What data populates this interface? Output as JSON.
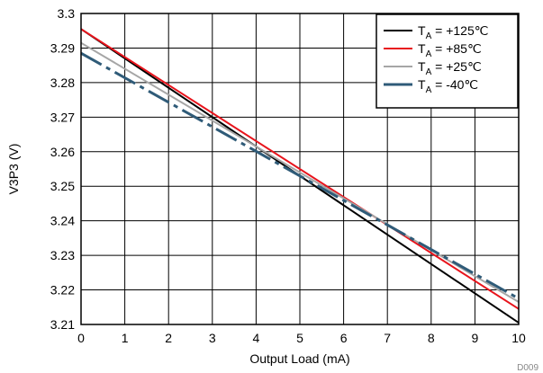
{
  "chart_data": {
    "type": "line",
    "xlabel": "Output Load (mA)",
    "ylabel": "V3P3 (V)",
    "xlim": [
      0,
      10
    ],
    "ylim": [
      3.21,
      3.3
    ],
    "xticks": [
      "0",
      "1",
      "2",
      "3",
      "4",
      "5",
      "6",
      "7",
      "8",
      "9",
      "10"
    ],
    "yticks": [
      "3.21",
      "3.22",
      "3.23",
      "3.24",
      "3.25",
      "3.26",
      "3.27",
      "3.28",
      "3.29",
      "3.3"
    ],
    "grid": true,
    "legend_position": "top-right",
    "figure_id": "D009",
    "series": [
      {
        "name": "+125℃",
        "label_prefix": "T",
        "label_sub": "A",
        "label_suffix": " = +125℃",
        "color": "#000000",
        "style": "solid",
        "x": [
          0,
          10
        ],
        "y": [
          3.2955,
          3.2105
        ]
      },
      {
        "name": "+85℃",
        "label_prefix": "T",
        "label_sub": "A",
        "label_suffix": " = +85℃",
        "color": "#e8141c",
        "style": "solid",
        "x": [
          0,
          10
        ],
        "y": [
          3.2955,
          3.2145
        ]
      },
      {
        "name": "+25℃",
        "label_prefix": "T",
        "label_sub": "A",
        "label_suffix": " = +25℃",
        "color": "#a6a6a6",
        "style": "solid",
        "x": [
          0,
          10
        ],
        "y": [
          3.2915,
          3.2165
        ]
      },
      {
        "name": "-40℃",
        "label_prefix": "T",
        "label_sub": "A",
        "label_suffix": " = -40℃",
        "color": "#2f5b78",
        "style": "dashed",
        "x": [
          0,
          10
        ],
        "y": [
          3.2885,
          3.2175
        ]
      }
    ]
  }
}
